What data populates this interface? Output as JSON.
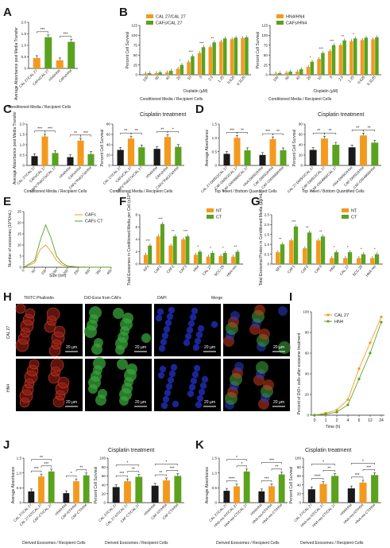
{
  "colors": {
    "orange": "#F39A1E",
    "green": "#5BA21F",
    "dark": "#1A1A1A",
    "red": "#E0301E",
    "blue": "#1F4FD0",
    "micro_red": "#C83A1E",
    "micro_green": "#3FA93A",
    "micro_blue": "#2A3CC8"
  },
  "panels": {
    "A": {
      "label": "A",
      "ylabel": "Average Absorbance post Media Transfer",
      "xlabel": "Conditioned Media / Recipient Cells"
    },
    "B": {
      "label": "B",
      "xlabel": "Conditioned Media / Recipient Cells"
    },
    "C": {
      "label": "C",
      "xlabel": "Conditioned Media / Recipient Cells",
      "xlabel2": "Conditioned Media / Recipient Cells",
      "right_title": "Cisplatin treatment",
      "ylabel_left": "Average Absorbance post Media Transfer",
      "ylabel_right": "Percent Cell Survival"
    },
    "D": {
      "label": "D",
      "xlabel": "Top Insert / Bottom Quantified Cells",
      "xlabel2": "Top Insert / Bottom Quantified Cells",
      "right_title": "Cisplatin treatment",
      "ylabel_left": "Average Absorbance",
      "ylabel_right": "Percent Cell Survival"
    },
    "E": {
      "label": "E",
      "ylabel": "Number of exosomes (10^6/mL)",
      "xlabel": "Size (nm)",
      "legend": [
        "CAFs",
        "CAFs CT"
      ]
    },
    "F": {
      "label": "F",
      "ylabel": "Total Exosomes in Conditioned Media per Cell (x10^)",
      "legend": [
        "NT",
        "CT"
      ]
    },
    "G": {
      "label": "G",
      "ylabel": "Total Exosomal Protein in Conditioned Media (µg/mL)",
      "legend": [
        "NT",
        "CT"
      ]
    },
    "H": {
      "label": "H",
      "col_titles": [
        "TRITC Phalloidin",
        "DiO-Exos from CAFs",
        "DAPI",
        "Merge"
      ],
      "row_labels": [
        "CAL 27",
        "HN4"
      ],
      "scale": "20 µm"
    },
    "I": {
      "label": "I",
      "ylabel": "Percent of DiO+ cells after exosome treatment",
      "xlabel": "Time (h)",
      "legend": [
        "CAL 27",
        "HN4"
      ]
    },
    "J": {
      "label": "J",
      "xlabel": "Derived Exosomes / Recipient Cells",
      "xlabel2": "Derived Exosomes / Recipient Cells",
      "right_title": "Cisplatin treatment",
      "ylabel_left": "Average Absorbance",
      "ylabel_right": "Percent Cell Survival"
    },
    "K": {
      "label": "K",
      "xlabel": "Derived Exosomes / Recipient Cells",
      "xlabel2": "Derived Exosomes / Recipient Cells",
      "right_title": "Cisplatin treatment",
      "ylabel_left": "Average Absorbance",
      "ylabel_right": "Percent Cell Survival"
    }
  },
  "chart_data": [
    {
      "id": "A",
      "type": "bar",
      "categories": [
        "CAL 27/CAL 27",
        "CAFs/CAL 27",
        "HN4/HN4",
        "CAFs/HN4"
      ],
      "values": [
        0.45,
        1.35,
        0.35,
        1.15
      ],
      "colors": [
        "orange",
        "green",
        "orange",
        "green"
      ],
      "ylim": [
        0,
        2.0
      ],
      "yticks": [
        0,
        0.5,
        1.0,
        1.5,
        2.0
      ],
      "ytick_labels": [
        "0",
        "0.5",
        "1.0",
        "1.5",
        "2.0"
      ],
      "sig": [
        "***",
        "***"
      ]
    },
    {
      "id": "B1",
      "type": "bar",
      "categories": [
        "100",
        "80",
        "40",
        "20",
        "10",
        "5",
        "2.5",
        "1.25",
        "0.625",
        "0.3125"
      ],
      "xlabel": "Cisplatin (µM)",
      "ylim": [
        0,
        125
      ],
      "yticks": [
        0,
        25,
        50,
        75,
        100,
        125
      ],
      "ytick_labels": [
        "0",
        "25",
        "50",
        "75",
        "100",
        "125"
      ],
      "ylabel": "Percent Cell Survival",
      "series": [
        {
          "name": "CAL 27/CAL 27",
          "values": [
            3,
            4,
            6,
            15,
            32,
            55,
            70,
            84,
            90,
            93
          ]
        },
        {
          "name": "CAFs/CAL 27",
          "values": [
            4,
            6,
            10,
            25,
            47,
            70,
            82,
            92,
            94,
            95
          ]
        }
      ],
      "sig": [
        "",
        "",
        "",
        "*",
        "***",
        "***",
        "**",
        "",
        "",
        ""
      ]
    },
    {
      "id": "B2",
      "type": "bar",
      "categories": [
        "100",
        "80",
        "40",
        "20",
        "10",
        "5",
        "2.5",
        "1.25",
        "0.625",
        "0.3125"
      ],
      "xlabel": "Cisplatin (µM)",
      "ylim": [
        0,
        125
      ],
      "yticks": [
        0,
        25,
        50,
        75,
        100,
        125
      ],
      "ytick_labels": [
        "0",
        "25",
        "50",
        "75",
        "100",
        "125"
      ],
      "ylabel": "Percent Cell Survival",
      "series": [
        {
          "name": "HN4/HN4",
          "values": [
            3,
            5,
            8,
            20,
            40,
            60,
            75,
            85,
            88,
            90
          ]
        },
        {
          "name": "CAFs/HN4",
          "values": [
            4,
            8,
            14,
            33,
            55,
            75,
            87,
            92,
            94,
            95
          ]
        }
      ],
      "sig": [
        "",
        "",
        "",
        "*",
        "***",
        "***",
        "**",
        "*",
        "",
        ""
      ]
    },
    {
      "id": "C1",
      "type": "bar",
      "categories": [
        "CAL 27/CAL 27",
        "CAFs/CAL 27",
        "CAFs^Rab27a/CAL 27",
        "HN4/HN4",
        "CAFs/HN4",
        "CAFs^Rab27a/HN4"
      ],
      "values": [
        0.45,
        1.4,
        0.6,
        0.4,
        1.2,
        0.55
      ],
      "colors": [
        "dark",
        "orange",
        "green",
        "dark",
        "orange",
        "green"
      ],
      "ylim": [
        0,
        2.0
      ],
      "yticks": [
        0,
        0.5,
        1.0,
        1.5,
        2.0
      ],
      "ytick_labels": [
        "0",
        "0.5",
        "1.0",
        "1.5",
        "2.0"
      ],
      "sig": [
        "***",
        "***",
        "**",
        "***"
      ]
    },
    {
      "id": "C2",
      "type": "bar",
      "categories": [
        "CAL 27/CAL 27",
        "CAFs/CAL 27",
        "CAFs^Rab27a/CAL 27",
        "HN4/HN4",
        "CAFs/HN4",
        "CAFs^Rab27a/HN4"
      ],
      "values": [
        30,
        52,
        35,
        32,
        55,
        36
      ],
      "colors": [
        "dark",
        "orange",
        "green",
        "dark",
        "orange",
        "green"
      ],
      "ylim": [
        0,
        80
      ],
      "yticks": [
        0,
        20,
        40,
        60,
        80
      ],
      "ytick_labels": [
        "0",
        "20",
        "40",
        "60",
        "80"
      ],
      "sig": [
        "**",
        "**",
        "**",
        "*"
      ]
    },
    {
      "id": "D1",
      "type": "bar",
      "categories": [
        "CAL 27-DMSO/CAL 27",
        "CAF-DMSO/CAL 27",
        "CAF-GW4869/CAL 27",
        "HN4-DMSO/HN4",
        "CAF-DMSO/HN4",
        "CAF-GW4869/HN4"
      ],
      "values": [
        0.42,
        1.0,
        0.55,
        0.38,
        0.95,
        0.55
      ],
      "colors": [
        "dark",
        "orange",
        "green",
        "dark",
        "orange",
        "green"
      ],
      "ylim": [
        0,
        1.5
      ],
      "yticks": [
        0,
        0.5,
        1.0,
        1.5
      ],
      "ytick_labels": [
        "0",
        "0.5",
        "1.0",
        "1.5"
      ],
      "sig": [
        "***",
        "**",
        "***",
        "**"
      ]
    },
    {
      "id": "D2",
      "type": "bar",
      "categories": [
        "CAL 27-DMSO/CAL 27",
        "CAF-DMSO/CAL 27",
        "CAF-GW4869/CAL 27",
        "HN4-DMSO/HN4",
        "CAF-DMSO/HN4",
        "CAF-GW4869/HN4"
      ],
      "values": [
        30,
        52,
        40,
        35,
        58,
        44
      ],
      "colors": [
        "dark",
        "orange",
        "green",
        "dark",
        "orange",
        "green"
      ],
      "ylim": [
        0,
        80
      ],
      "yticks": [
        0,
        20,
        40,
        60,
        80
      ],
      "ytick_labels": [
        "0",
        "20",
        "40",
        "60",
        "80"
      ],
      "sig": [
        "**",
        "**",
        "**",
        "**"
      ]
    },
    {
      "id": "E",
      "type": "line",
      "x": [
        0,
        50,
        75,
        100,
        125,
        150,
        175,
        200,
        250,
        300,
        350,
        400
      ],
      "xticks": [
        0,
        50,
        100,
        150,
        200,
        250,
        300,
        350,
        400
      ],
      "xtick_labels": [
        "0",
        "50",
        "100",
        "150",
        "200",
        "250",
        "300",
        "350",
        "400"
      ],
      "ylim": [
        0,
        25
      ],
      "yticks": [
        0,
        5,
        10,
        15,
        20,
        25
      ],
      "ytick_labels": [
        "0",
        "5",
        "10",
        "15",
        "20",
        "25"
      ],
      "series": [
        {
          "name": "CAFs",
          "values": [
            0,
            2,
            8,
            10,
            7,
            3,
            1,
            0.5,
            0.1,
            0,
            0,
            0
          ],
          "color": "orange"
        },
        {
          "name": "CAFs CT",
          "values": [
            0,
            3,
            12,
            19,
            13,
            5,
            2,
            0.5,
            0.1,
            0,
            0,
            0
          ],
          "color": "green"
        }
      ]
    },
    {
      "id": "F",
      "type": "bar",
      "categories": [
        "NFs",
        "CAF1",
        "CAF2",
        "CAF3",
        "HN4",
        "CAL 27",
        "SCC-25",
        "HN4-res"
      ],
      "ylim": [
        0,
        8
      ],
      "yticks": [
        0,
        2,
        4,
        6,
        8
      ],
      "ytick_labels": [
        "0",
        "2",
        "4",
        "6",
        "8"
      ],
      "series": [
        {
          "name": "NT",
          "values": [
            1.5,
            4.5,
            3,
            4,
            1.5,
            1.2,
            1.3,
            1.2
          ]
        },
        {
          "name": "CT",
          "values": [
            3,
            6.5,
            4.5,
            4.5,
            2,
            1.8,
            1.8,
            2
          ]
        }
      ],
      "sig": [
        "***",
        "***",
        "**",
        "***",
        "*",
        "*",
        "*",
        "**"
      ]
    },
    {
      "id": "G",
      "type": "bar",
      "categories": [
        "NFs",
        "CAF1",
        "CAF2",
        "CAF3",
        "HN4",
        "CAL 27",
        "SCC-25",
        "HN4-res"
      ],
      "ylim": [
        0,
        2.5
      ],
      "yticks": [
        0,
        0.5,
        1.0,
        1.5,
        2.0,
        2.5
      ],
      "ytick_labels": [
        "0",
        "0.5",
        "1.0",
        "1.5",
        "2.0",
        "2.5"
      ],
      "series": [
        {
          "name": "NT",
          "values": [
            0.6,
            1.2,
            0.8,
            1.2,
            0.3,
            0.3,
            0.3,
            0.3
          ]
        },
        {
          "name": "CT",
          "values": [
            1.0,
            1.9,
            1.6,
            1.4,
            0.6,
            0.6,
            0.5,
            0.5
          ]
        }
      ],
      "sig": [
        "**",
        "***",
        "**",
        "**",
        "*",
        "*",
        "*",
        "*"
      ]
    },
    {
      "id": "I",
      "type": "line",
      "x": [
        0,
        1,
        2,
        4,
        6,
        12,
        24
      ],
      "xtick_labels": [
        "0",
        "1",
        "2",
        "4",
        "6",
        "12",
        "24"
      ],
      "ylim": [
        0,
        100
      ],
      "yticks": [
        0,
        20,
        40,
        60,
        80,
        100
      ],
      "ytick_labels": [
        "0",
        "20",
        "40",
        "60",
        "80",
        "100"
      ],
      "series": [
        {
          "name": "CAL 27",
          "values": [
            0,
            2,
            5,
            15,
            45,
            70,
            95
          ],
          "color": "orange"
        },
        {
          "name": "HN4",
          "values": [
            0,
            1,
            3,
            10,
            35,
            60,
            90
          ],
          "color": "green"
        }
      ]
    },
    {
      "id": "J1",
      "type": "bar",
      "categories": [
        "CAL 27/CAL 27",
        "CAL 27-NT/CAL 27",
        "CAF-CT/CAL 27",
        "HN4/HN4",
        "CAF-NT/HN4",
        "CAF-CT/HN4"
      ],
      "values": [
        0.38,
        0.88,
        1.05,
        0.32,
        0.72,
        0.92
      ],
      "colors": [
        "dark",
        "orange",
        "green",
        "dark",
        "orange",
        "green"
      ],
      "ylim": [
        0,
        1.5
      ],
      "yticks": [
        0,
        0.5,
        1.0,
        1.5
      ],
      "ytick_labels": [
        "0",
        "0.5",
        "1.0",
        "1.5"
      ],
      "sig": [
        "***",
        "***",
        "*",
        "**",
        "**"
      ]
    },
    {
      "id": "J2",
      "type": "bar",
      "categories": [
        "CAL 27/CAL 27",
        "CAL 27-NT/CAL 27",
        "CAF-CT/CAL 27",
        "HN4/HN4",
        "CAF-NT/HN4",
        "CAF-CT/HN4"
      ],
      "values": [
        35,
        48,
        58,
        38,
        50,
        60
      ],
      "colors": [
        "dark",
        "orange",
        "green",
        "dark",
        "orange",
        "green"
      ],
      "ylim": [
        0,
        100
      ],
      "yticks": [
        0,
        20,
        40,
        60,
        80,
        100
      ],
      "ytick_labels": [
        "0",
        "20",
        "40",
        "60",
        "80",
        "100"
      ],
      "sig": [
        "***",
        "**",
        "**",
        "***",
        "*",
        "*"
      ]
    },
    {
      "id": "K1",
      "type": "bar",
      "categories": [
        "CAL 27/CAL 27",
        "HN4-res-NT/CAL 27",
        "HN4-res-CT/CAL 27",
        "HN4/HN4",
        "HN4-res-NT/HN4",
        "HN4-res-CT/HN4"
      ],
      "values": [
        0.4,
        0.55,
        1.05,
        0.38,
        0.55,
        0.95
      ],
      "colors": [
        "dark",
        "orange",
        "green",
        "dark",
        "orange",
        "green"
      ],
      "ylim": [
        0,
        1.5
      ],
      "yticks": [
        0,
        0.5,
        1.0,
        1.5
      ],
      "ytick_labels": [
        "0",
        "0.5",
        "1.0",
        "1.5"
      ],
      "sig": [
        "****",
        "*",
        "***",
        "**",
        "*",
        "***"
      ]
    },
    {
      "id": "K2",
      "type": "bar",
      "categories": [
        "CAL 27/CAL 27",
        "HN4-res-NT/CAL 27",
        "HN4-res-CT/CAL 27",
        "HN4/HN4",
        "HN4-res-NT/HN4",
        "HN4-res-CT/HN4"
      ],
      "values": [
        30,
        42,
        60,
        32,
        45,
        62
      ],
      "colors": [
        "dark",
        "orange",
        "green",
        "dark",
        "orange",
        "green"
      ],
      "ylim": [
        0,
        100
      ],
      "yticks": [
        0,
        20,
        40,
        60,
        80,
        100
      ],
      "ytick_labels": [
        "0",
        "20",
        "40",
        "60",
        "80",
        "100"
      ],
      "sig": [
        "****",
        "**",
        "***",
        "***",
        "*",
        "*"
      ]
    }
  ]
}
